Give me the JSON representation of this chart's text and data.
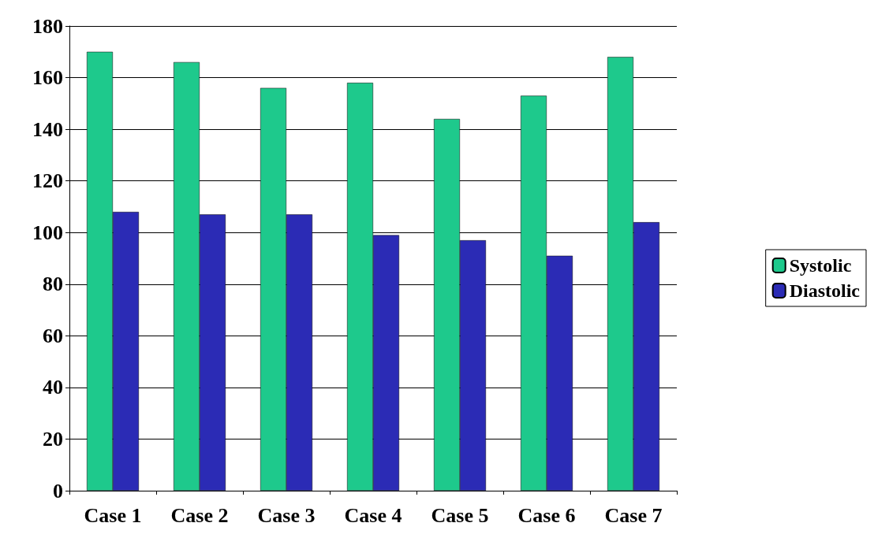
{
  "chart_data": {
    "type": "bar",
    "categories": [
      "Case 1",
      "Case 2",
      "Case 3",
      "Case 4",
      "Case 5",
      "Case 6",
      "Case 7"
    ],
    "series": [
      {
        "name": "Systolic",
        "color": "#1ec98c",
        "values": [
          170,
          166,
          156,
          158,
          144,
          153,
          168
        ]
      },
      {
        "name": "Diastolic",
        "color": "#2b2bb5",
        "values": [
          108,
          107,
          107,
          99,
          97,
          91,
          104
        ]
      }
    ],
    "ylim": [
      0,
      180
    ],
    "yticks": [
      0,
      20,
      40,
      60,
      80,
      100,
      120,
      140,
      160,
      180
    ],
    "grid": "y",
    "legend": "right"
  }
}
